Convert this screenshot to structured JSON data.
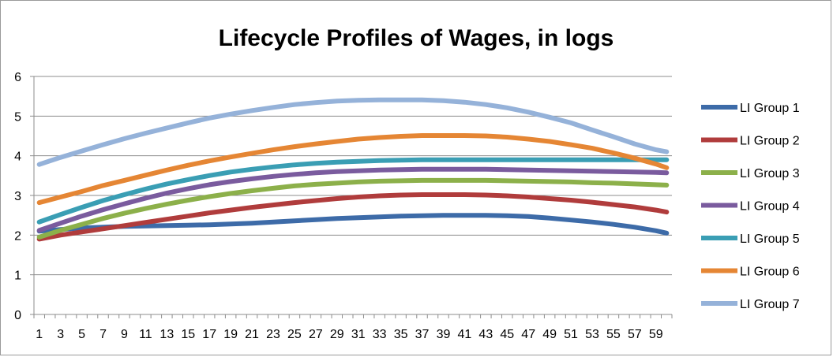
{
  "chart_data": {
    "type": "line",
    "title": "Lifecycle Profiles of Wages, in logs",
    "xlabel": "",
    "ylabel": "",
    "ylim": [
      0,
      6
    ],
    "yticks": [
      0,
      1,
      2,
      3,
      4,
      5,
      6
    ],
    "xticks": [
      "1",
      "3",
      "5",
      "7",
      "9",
      "11",
      "13",
      "15",
      "17",
      "19",
      "21",
      "23",
      "25",
      "27",
      "29",
      "31",
      "33",
      "35",
      "37",
      "39",
      "41",
      "43",
      "45",
      "47",
      "49",
      "51",
      "53",
      "55",
      "57",
      "59"
    ],
    "x": [
      1,
      3,
      5,
      7,
      9,
      11,
      13,
      15,
      17,
      19,
      21,
      23,
      25,
      27,
      29,
      31,
      33,
      35,
      37,
      39,
      41,
      43,
      45,
      47,
      49,
      51,
      53,
      55,
      57,
      59,
      60
    ],
    "grid": true,
    "legend_position": "right",
    "series": [
      {
        "name": "LI Group 1",
        "color": "#3d6ba8",
        "values": [
          2.1,
          2.14,
          2.18,
          2.2,
          2.22,
          2.23,
          2.24,
          2.25,
          2.26,
          2.28,
          2.3,
          2.33,
          2.36,
          2.39,
          2.42,
          2.44,
          2.46,
          2.48,
          2.49,
          2.5,
          2.5,
          2.5,
          2.49,
          2.47,
          2.43,
          2.38,
          2.33,
          2.27,
          2.2,
          2.11,
          2.05
        ]
      },
      {
        "name": "LI Group 2",
        "color": "#b03c3c",
        "values": [
          1.9,
          2.0,
          2.08,
          2.16,
          2.24,
          2.32,
          2.4,
          2.48,
          2.56,
          2.63,
          2.7,
          2.76,
          2.82,
          2.87,
          2.92,
          2.96,
          2.99,
          3.01,
          3.02,
          3.02,
          3.02,
          3.01,
          2.99,
          2.96,
          2.92,
          2.88,
          2.83,
          2.77,
          2.71,
          2.63,
          2.58
        ]
      },
      {
        "name": "LI Group 3",
        "color": "#8cb04a",
        "values": [
          1.95,
          2.12,
          2.27,
          2.42,
          2.55,
          2.67,
          2.78,
          2.88,
          2.97,
          3.05,
          3.12,
          3.18,
          3.24,
          3.28,
          3.31,
          3.34,
          3.36,
          3.37,
          3.38,
          3.38,
          3.38,
          3.38,
          3.37,
          3.36,
          3.35,
          3.34,
          3.32,
          3.31,
          3.29,
          3.27,
          3.26
        ]
      },
      {
        "name": "LI Group 4",
        "color": "#7a5b9e",
        "values": [
          2.12,
          2.3,
          2.48,
          2.64,
          2.79,
          2.93,
          3.06,
          3.17,
          3.27,
          3.35,
          3.42,
          3.48,
          3.53,
          3.57,
          3.6,
          3.62,
          3.64,
          3.65,
          3.66,
          3.66,
          3.66,
          3.66,
          3.65,
          3.64,
          3.63,
          3.62,
          3.61,
          3.6,
          3.59,
          3.58,
          3.57
        ]
      },
      {
        "name": "LI Group 5",
        "color": "#3a9eb4",
        "values": [
          2.33,
          2.52,
          2.7,
          2.87,
          3.02,
          3.16,
          3.29,
          3.4,
          3.5,
          3.59,
          3.66,
          3.72,
          3.77,
          3.81,
          3.84,
          3.86,
          3.88,
          3.89,
          3.9,
          3.9,
          3.9,
          3.9,
          3.9,
          3.9,
          3.9,
          3.9,
          3.9,
          3.9,
          3.9,
          3.9,
          3.9
        ]
      },
      {
        "name": "LI Group 6",
        "color": "#e58634",
        "values": [
          2.82,
          2.96,
          3.1,
          3.25,
          3.38,
          3.51,
          3.64,
          3.76,
          3.87,
          3.97,
          4.06,
          4.15,
          4.23,
          4.3,
          4.36,
          4.42,
          4.46,
          4.49,
          4.51,
          4.51,
          4.51,
          4.5,
          4.47,
          4.42,
          4.36,
          4.28,
          4.19,
          4.07,
          3.94,
          3.79,
          3.7
        ]
      },
      {
        "name": "LI Group 7",
        "color": "#95b2d9",
        "values": [
          3.78,
          3.96,
          4.12,
          4.28,
          4.43,
          4.57,
          4.7,
          4.83,
          4.95,
          5.05,
          5.14,
          5.22,
          5.29,
          5.34,
          5.38,
          5.4,
          5.41,
          5.41,
          5.41,
          5.39,
          5.35,
          5.29,
          5.21,
          5.1,
          4.97,
          4.83,
          4.65,
          4.48,
          4.3,
          4.15,
          4.1
        ]
      }
    ]
  }
}
